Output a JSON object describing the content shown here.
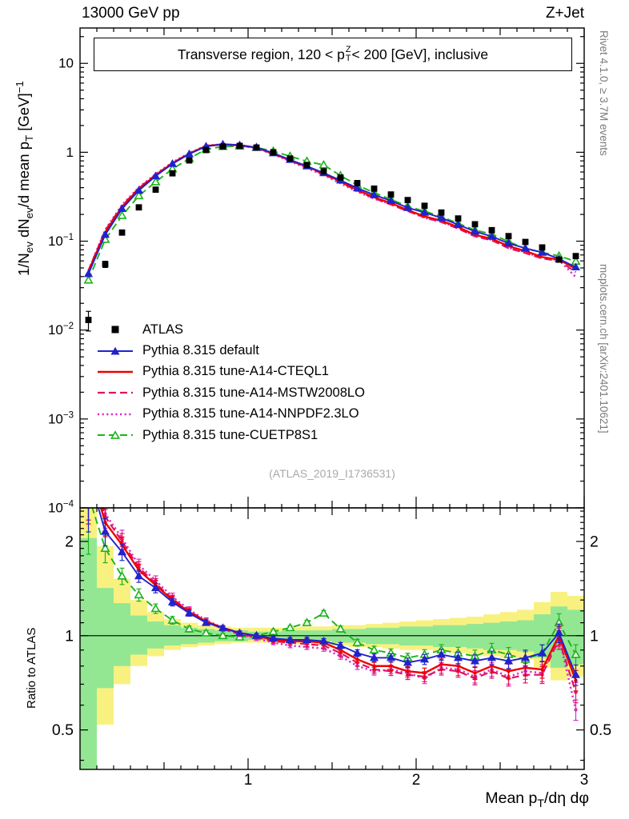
{
  "header": {
    "beam": "13000 GeV pp",
    "process": "Z+Jet"
  },
  "watermarks": {
    "rivet": "Rivet 4.1.0, ≥ 3.7M events",
    "mcplots": "mcplots.cern.ch [arXiv:2401.10621]"
  },
  "analysis_id": "(ATLAS_2019_I1736531)",
  "chart_data": {
    "type": "line",
    "title_parts": {
      "prefix": "Transverse region, 120 < p",
      "sup": "Z",
      "sub": "T",
      "suffix": " < 200 [GeV], inclusive"
    },
    "ylabel_parts": {
      "p1": "1/N",
      "s1": "ev",
      "p2": " dN",
      "s2": "ev",
      "p3": "/d mean p",
      "s3": "T",
      "p4": " [GeV]",
      "s4": "−1"
    },
    "xlabel_parts": {
      "p1": "Mean p",
      "s1": "T",
      "p2": "/dη dφ"
    },
    "ratio_label": "Ratio to ATLAS",
    "x_axis": {
      "min": 0,
      "max": 3.0,
      "major_ticks": [
        1,
        2,
        3
      ],
      "mid_step": 0.5,
      "minor_step": 0.1
    },
    "main_axis": {
      "log": true,
      "min": 0.0001,
      "max": 25,
      "tick_exponents": [
        1,
        0,
        -1,
        -2,
        -3,
        -4
      ]
    },
    "ratio_axis": {
      "log": true,
      "min": 0.374,
      "max": 2.56,
      "major_ticks": [
        0.5,
        1,
        2
      ],
      "minor_ticks": [
        0.4,
        0.6,
        0.7,
        0.8,
        0.9,
        1.1,
        1.2,
        1.3,
        1.4,
        1.5,
        1.6,
        1.7,
        1.8,
        1.9,
        2.1,
        2.2,
        2.3,
        2.4,
        2.5
      ]
    },
    "bins": [
      0.05,
      0.15,
      0.25,
      0.35,
      0.45,
      0.55,
      0.65,
      0.75,
      0.85,
      0.95,
      1.05,
      1.15,
      1.25,
      1.35,
      1.45,
      1.55,
      1.65,
      1.75,
      1.85,
      1.95,
      2.05,
      2.15,
      2.25,
      2.35,
      2.45,
      2.55,
      2.65,
      2.75,
      2.85,
      2.95
    ],
    "atlas": {
      "label": "ATLAS",
      "color": "#000000",
      "marker": "square-filled",
      "values": [
        0.013,
        0.055,
        0.125,
        0.24,
        0.38,
        0.58,
        0.81,
        1.06,
        1.16,
        1.18,
        1.13,
        1.0,
        0.85,
        0.72,
        0.61,
        0.52,
        0.45,
        0.39,
        0.335,
        0.29,
        0.25,
        0.21,
        0.18,
        0.155,
        0.133,
        0.114,
        0.098,
        0.085,
        0.062,
        0.068
      ],
      "frac_err": [
        0.25,
        0.08,
        0.05,
        0.04,
        0.03,
        0.025,
        0.02,
        0.015,
        0.012,
        0.012,
        0.012,
        0.012,
        0.013,
        0.014,
        0.015,
        0.016,
        0.018,
        0.02,
        0.022,
        0.024,
        0.026,
        0.028,
        0.03,
        0.033,
        0.036,
        0.04,
        0.044,
        0.05,
        0.055,
        0.06
      ]
    },
    "series": [
      {
        "label": "Pythia 8.315 default",
        "color": "#2222cc",
        "line": "solid",
        "width": 1.9,
        "marker": "triangle-filled",
        "ratio": [
          3.3,
          2.15,
          1.85,
          1.55,
          1.42,
          1.28,
          1.18,
          1.1,
          1.06,
          1.02,
          1.0,
          0.98,
          0.97,
          0.97,
          0.96,
          0.93,
          0.88,
          0.85,
          0.85,
          0.82,
          0.84,
          0.87,
          0.85,
          0.83,
          0.85,
          0.83,
          0.85,
          0.88,
          1.02,
          0.75
        ]
      },
      {
        "label": "Pythia 8.315 tune-A14-CTEQL1",
        "color": "#ee0000",
        "line": "solid",
        "width": 2.4,
        "marker": "dot",
        "ratio": [
          3.5,
          2.3,
          1.95,
          1.62,
          1.45,
          1.3,
          1.19,
          1.11,
          1.06,
          1.02,
          1.0,
          0.97,
          0.96,
          0.96,
          0.95,
          0.9,
          0.84,
          0.8,
          0.8,
          0.77,
          0.76,
          0.81,
          0.8,
          0.76,
          0.8,
          0.77,
          0.79,
          0.78,
          1.0,
          0.72
        ]
      },
      {
        "label": "Pythia 8.315 tune-A14-MSTW2008LO",
        "color": "#e01360",
        "line": "dashed",
        "width": 2.2,
        "marker": "dot",
        "ratio": [
          3.6,
          2.4,
          2.0,
          1.65,
          1.47,
          1.31,
          1.2,
          1.11,
          1.05,
          1.01,
          0.99,
          0.96,
          0.95,
          0.94,
          0.93,
          0.88,
          0.82,
          0.78,
          0.77,
          0.75,
          0.74,
          0.78,
          0.77,
          0.73,
          0.77,
          0.73,
          0.75,
          0.75,
          0.97,
          0.66
        ]
      },
      {
        "label": "Pythia 8.315 tune-A14-NNPDF2.3LO",
        "color": "#d62ec2",
        "line": "dotted",
        "width": 2.5,
        "marker": "dot",
        "ratio": [
          3.6,
          2.45,
          2.05,
          1.68,
          1.5,
          1.33,
          1.21,
          1.12,
          1.06,
          1.01,
          0.98,
          0.95,
          0.93,
          0.92,
          0.91,
          0.86,
          0.8,
          0.77,
          0.78,
          0.76,
          0.73,
          0.79,
          0.78,
          0.74,
          0.78,
          0.74,
          0.77,
          0.76,
          0.99,
          0.58
        ]
      },
      {
        "label": "Pythia 8.315 tune-CUETP8S1",
        "color": "#1db31d",
        "line": "dashed",
        "width": 1.9,
        "marker": "triangle-open",
        "ratio": [
          2.8,
          1.9,
          1.55,
          1.35,
          1.22,
          1.12,
          1.05,
          1.02,
          1.0,
          0.99,
          1.0,
          1.03,
          1.06,
          1.1,
          1.18,
          1.05,
          0.95,
          0.9,
          0.88,
          0.85,
          0.87,
          0.9,
          0.88,
          0.86,
          0.9,
          0.87,
          0.84,
          0.88,
          1.1,
          0.87
        ]
      }
    ],
    "ratio_frac_err": [
      0.35,
      0.1,
      0.06,
      0.045,
      0.035,
      0.028,
      0.022,
      0.018,
      0.016,
      0.015,
      0.015,
      0.015,
      0.016,
      0.018,
      0.02,
      0.022,
      0.025,
      0.028,
      0.031,
      0.034,
      0.037,
      0.04,
      0.043,
      0.046,
      0.05,
      0.054,
      0.058,
      0.062,
      0.068,
      0.075
    ],
    "bands": {
      "yellow": {
        "color": "#f8f180",
        "lo": [
          0.37,
          0.52,
          0.7,
          0.8,
          0.86,
          0.9,
          0.92,
          0.93,
          0.94,
          0.95,
          0.95,
          0.95,
          0.94,
          0.94,
          0.93,
          0.93,
          0.92,
          0.92,
          0.91,
          0.9,
          0.9,
          0.89,
          0.88,
          0.87,
          0.86,
          0.85,
          0.84,
          0.79,
          0.72,
          0.74
        ],
        "hi": [
          2.56,
          1.93,
          1.52,
          1.3,
          1.19,
          1.13,
          1.1,
          1.08,
          1.07,
          1.06,
          1.06,
          1.06,
          1.06,
          1.07,
          1.07,
          1.08,
          1.08,
          1.09,
          1.1,
          1.11,
          1.12,
          1.13,
          1.14,
          1.15,
          1.17,
          1.19,
          1.21,
          1.28,
          1.38,
          1.34
        ]
      },
      "green": {
        "color": "#93e793",
        "lo": [
          0.37,
          0.68,
          0.8,
          0.87,
          0.91,
          0.93,
          0.94,
          0.95,
          0.96,
          0.96,
          0.97,
          0.97,
          0.96,
          0.96,
          0.96,
          0.95,
          0.95,
          0.94,
          0.94,
          0.93,
          0.93,
          0.92,
          0.92,
          0.91,
          0.9,
          0.9,
          0.89,
          0.85,
          0.79,
          0.81
        ],
        "hi": [
          2.05,
          1.42,
          1.27,
          1.16,
          1.11,
          1.08,
          1.06,
          1.05,
          1.04,
          1.04,
          1.03,
          1.03,
          1.04,
          1.04,
          1.04,
          1.05,
          1.05,
          1.06,
          1.06,
          1.07,
          1.07,
          1.08,
          1.08,
          1.09,
          1.1,
          1.11,
          1.12,
          1.17,
          1.24,
          1.21
        ]
      }
    }
  }
}
